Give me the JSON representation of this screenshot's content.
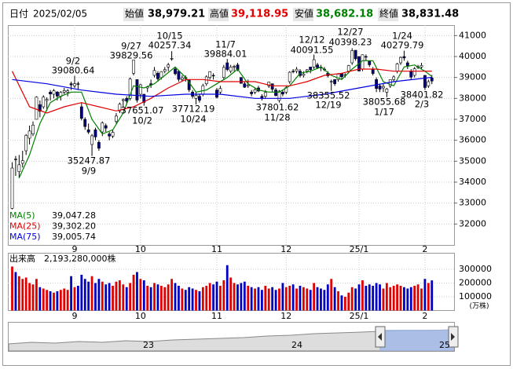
{
  "header": {
    "date_label": "日付",
    "date": "2025/02/05",
    "open_label": "始値",
    "open": "38,979.21",
    "high_label": "高値",
    "high": "39,118.95",
    "low_label": "安値",
    "low": "38,682.18",
    "close_label": "終値",
    "close": "38,831.48"
  },
  "chart_data": {
    "type": "candlestick",
    "candles": [
      [
        32750,
        34950,
        32700,
        34675
      ],
      [
        35100,
        35250,
        34300,
        35089
      ],
      [
        34500,
        35300,
        34200,
        34831
      ],
      [
        34900,
        35500,
        34700,
        35025
      ],
      [
        35500,
        36300,
        35300,
        36232
      ],
      [
        36100,
        36700,
        35800,
        36442
      ],
      [
        36300,
        36900,
        36200,
        36726
      ],
      [
        37000,
        38100,
        37000,
        38062
      ],
      [
        37700,
        37900,
        37100,
        37388
      ],
      [
        37600,
        38150,
        37500,
        38062
      ],
      [
        37900,
        38050,
        37400,
        37951
      ],
      [
        38300,
        38400,
        37900,
        38211
      ],
      [
        38200,
        38450,
        38000,
        38364
      ],
      [
        38300,
        38350,
        37900,
        38110
      ],
      [
        38100,
        38350,
        37900,
        38288
      ],
      [
        38300,
        38500,
        38200,
        38371
      ],
      [
        38300,
        38450,
        38100,
        38362
      ],
      [
        38700,
        38800,
        38400,
        38647
      ],
      [
        38600,
        39080.64,
        38500,
        38700
      ],
      [
        38700,
        38800,
        38400,
        38686
      ],
      [
        37600,
        37800,
        36950,
        37047
      ],
      [
        37000,
        37100,
        36500,
        36657
      ],
      [
        36500,
        36800,
        36300,
        36391
      ],
      [
        35800,
        36300,
        35247.87,
        36215
      ],
      [
        36500,
        36600,
        36000,
        36159
      ],
      [
        35900,
        36000,
        35500,
        35619
      ],
      [
        36400,
        36900,
        36200,
        36833
      ],
      [
        36700,
        36800,
        36400,
        36581
      ],
      [
        36300,
        36400,
        36000,
        36203
      ],
      [
        36200,
        36500,
        36100,
        36380
      ],
      [
        36900,
        37300,
        36800,
        37155
      ],
      [
        37400,
        37800,
        37300,
        37723
      ],
      [
        37900,
        38000,
        37600,
        37940
      ],
      [
        38000,
        38100,
        37700,
        37870
      ],
      [
        38000,
        39000,
        37900,
        38925
      ],
      [
        39200,
        39829.56,
        39100,
        39829
      ],
      [
        38900,
        38900,
        37800,
        37919
      ],
      [
        38200,
        38700,
        38000,
        38651
      ],
      [
        38200,
        38200,
        37651.07,
        37808
      ],
      [
        38500,
        38600,
        38300,
        38552
      ],
      [
        38700,
        38900,
        38500,
        38635
      ],
      [
        39100,
        39500,
        39000,
        39332
      ],
      [
        39200,
        39300,
        38800,
        38937
      ],
      [
        39000,
        39300,
        38900,
        39277
      ],
      [
        39300,
        39500,
        39200,
        39380
      ],
      [
        39500,
        39700,
        39300,
        39605
      ],
      [
        39900,
        40257.34,
        39800,
        39910
      ],
      [
        39400,
        39500,
        39100,
        39180
      ],
      [
        39300,
        39300,
        38800,
        38911
      ],
      [
        38900,
        39100,
        38800,
        38981
      ],
      [
        39000,
        39100,
        38800,
        38954
      ],
      [
        38900,
        38900,
        38300,
        38411
      ],
      [
        38300,
        38400,
        38000,
        38104
      ],
      [
        38000,
        38300,
        37712.19,
        38143
      ],
      [
        38100,
        38200,
        37800,
        37913
      ],
      [
        38200,
        38700,
        38100,
        38605
      ],
      [
        38700,
        39100,
        38600,
        39027
      ],
      [
        39000,
        39300,
        38900,
        39277
      ],
      [
        39100,
        39200,
        38900,
        39081
      ],
      [
        38400,
        38500,
        38000,
        38053
      ],
      [
        38300,
        38600,
        38200,
        38474
      ],
      [
        39000,
        39600,
        38900,
        39480
      ],
      [
        39700,
        39884.01,
        39300,
        39381
      ],
      [
        39300,
        39600,
        39200,
        39500
      ],
      [
        39500,
        39600,
        39300,
        39533
      ],
      [
        39600,
        39700,
        39300,
        39376
      ],
      [
        39000,
        39000,
        38700,
        38721
      ],
      [
        38700,
        38800,
        38500,
        38535
      ],
      [
        38600,
        38900,
        38500,
        38642
      ],
      [
        38300,
        38400,
        38100,
        38220
      ],
      [
        38300,
        38500,
        38200,
        38414
      ],
      [
        38500,
        38600,
        38300,
        38352
      ],
      [
        38100,
        38200,
        37900,
        38026
      ],
      [
        38100,
        38400,
        38000,
        38283
      ],
      [
        38600,
        38800,
        38500,
        38780
      ],
      [
        38700,
        38700,
        38300,
        38442
      ],
      [
        38400,
        38500,
        38100,
        38134
      ],
      [
        37900,
        38400,
        37801.62,
        38349
      ],
      [
        38300,
        38400,
        38100,
        38208
      ],
      [
        38300,
        38600,
        38200,
        38513
      ],
      [
        38800,
        39300,
        38700,
        39248
      ],
      [
        39300,
        39400,
        39200,
        39276
      ],
      [
        39300,
        39500,
        39200,
        39395
      ],
      [
        39300,
        39400,
        39000,
        39091
      ],
      [
        39100,
        39300,
        39000,
        39160
      ],
      [
        39300,
        39400,
        39200,
        39367
      ],
      [
        39500,
        39500,
        39200,
        39372
      ],
      [
        39500,
        40091.55,
        39400,
        39849
      ],
      [
        39600,
        39700,
        39400,
        39470
      ],
      [
        39500,
        39600,
        39300,
        39457
      ],
      [
        39400,
        39500,
        39300,
        39364
      ],
      [
        39200,
        39300,
        39000,
        39081
      ],
      [
        38800,
        38900,
        38355.52,
        38813
      ],
      [
        38900,
        38900,
        38600,
        38701
      ],
      [
        38900,
        39200,
        38800,
        39161
      ],
      [
        39200,
        39200,
        38900,
        39036
      ],
      [
        39100,
        39200,
        39000,
        39130
      ],
      [
        39300,
        39600,
        39200,
        39568
      ],
      [
        39700,
        40398.23,
        39600,
        40281
      ],
      [
        40300,
        40300,
        39800,
        39894
      ],
      [
        40000,
        40000,
        39300,
        39307
      ],
      [
        39400,
        40100,
        39300,
        40083
      ],
      [
        40000,
        40100,
        39800,
        39981
      ],
      [
        39800,
        39800,
        39500,
        39605
      ],
      [
        39400,
        39500,
        39100,
        39190
      ],
      [
        38900,
        39000,
        38300,
        38474
      ],
      [
        38600,
        38700,
        38300,
        38444
      ],
      [
        38500,
        38700,
        38300,
        38572
      ],
      [
        38300,
        38500,
        38055.68,
        38451
      ],
      [
        38600,
        38900,
        38500,
        38902
      ],
      [
        38900,
        39100,
        38800,
        39027
      ],
      [
        39300,
        39700,
        39200,
        39646
      ],
      [
        39700,
        40000,
        39600,
        39958
      ],
      [
        40000,
        40279.79,
        39800,
        39931
      ],
      [
        39700,
        39800,
        39400,
        39565
      ],
      [
        39300,
        39400,
        38900,
        39016
      ],
      [
        39100,
        39500,
        39000,
        39414
      ],
      [
        39500,
        39600,
        39400,
        39513
      ],
      [
        39500,
        39700,
        39400,
        39572
      ],
      [
        39100,
        39100,
        38401.82,
        38520
      ],
      [
        38600,
        38900,
        38500,
        38798
      ],
      [
        38979.21,
        39118.95,
        38682.18,
        38831.48
      ]
    ],
    "up_color": "#ffffff",
    "down_color": "#000080",
    "xlim": [
      -1.25,
      127.4
    ],
    "xticks": [
      {
        "value": 18,
        "label": "9"
      },
      {
        "value": 37,
        "label": "10"
      },
      {
        "value": 59,
        "label": "11"
      },
      {
        "value": 79,
        "label": "12"
      },
      {
        "value": 100,
        "label": "25/1"
      },
      {
        "value": 119,
        "label": "2"
      }
    ],
    "ylim": [
      31000,
      41500
    ],
    "yticks": [
      32000,
      33000,
      34000,
      35000,
      36000,
      37000,
      38000,
      39000,
      40000,
      41000
    ],
    "grid": true,
    "ma": [
      {
        "name": "MA(5)",
        "color": "#008000",
        "last": {
          "value": 39047.28,
          "label": "39,047.28"
        },
        "x": [
          2,
          5,
          8,
          11,
          14,
          17,
          20,
          23,
          26,
          29,
          32,
          35,
          38,
          41,
          44,
          47,
          50,
          53,
          56,
          59,
          62,
          65,
          68,
          71,
          74,
          77,
          80,
          83,
          86,
          89,
          92,
          95,
          98,
          101,
          104,
          107,
          110,
          113,
          116,
          119,
          121
        ],
        "values": [
          34200,
          35300,
          36800,
          37800,
          38100,
          38300,
          38300,
          37000,
          36300,
          36500,
          37300,
          38600,
          38500,
          38700,
          39100,
          39500,
          39000,
          38300,
          38400,
          38700,
          39000,
          39400,
          38700,
          38400,
          38300,
          38300,
          38600,
          39200,
          39300,
          39500,
          39100,
          38900,
          39400,
          39800,
          39800,
          38800,
          38600,
          39500,
          39600,
          39300,
          39047.28
        ]
      },
      {
        "name": "MA(25)",
        "color": "#e00000",
        "last": {
          "value": 39302.2,
          "label": "39,302.20"
        },
        "x": [
          0,
          5,
          10,
          15,
          20,
          25,
          30,
          35,
          40,
          45,
          50,
          55,
          60,
          65,
          70,
          75,
          80,
          85,
          90,
          95,
          100,
          105,
          110,
          115,
          121
        ],
        "values": [
          39300,
          37600,
          37300,
          37600,
          37800,
          37600,
          37400,
          37600,
          38000,
          38500,
          38900,
          38900,
          38800,
          38800,
          38800,
          38600,
          38600,
          38800,
          39100,
          39200,
          39400,
          39400,
          39300,
          39300,
          39302.2
        ]
      },
      {
        "name": "MA(75)",
        "color": "#0000e0",
        "last": {
          "value": 39005.74,
          "label": "39,005.74"
        },
        "x": [
          0,
          10,
          20,
          30,
          40,
          50,
          60,
          70,
          80,
          90,
          100,
          110,
          121
        ],
        "values": [
          38900,
          38700,
          38400,
          38200,
          38100,
          38200,
          38200,
          38000,
          38000,
          38200,
          38500,
          38800,
          39005.74
        ]
      }
    ],
    "annotations": [
      {
        "date": "9/2",
        "price": 39080.64
      },
      {
        "date": "9/27",
        "price": 39829.56
      },
      {
        "date": "10/15",
        "price": 40257.34
      },
      {
        "date": "11/7",
        "price": 39884.01
      },
      {
        "date": "12/12",
        "price": 40091.55
      },
      {
        "date": "12/27",
        "price": 40398.23
      },
      {
        "date": "1/24",
        "price": 40279.79
      },
      {
        "date": "9/9",
        "price": 35247.87
      },
      {
        "date": "10/2",
        "price": 37651.07
      },
      {
        "date": "10/24",
        "price": 37712.19
      },
      {
        "date": "11/28",
        "price": 37801.62
      },
      {
        "date": "12/19",
        "price": 38355.52
      },
      {
        "date": "1/17",
        "price": 38055.68
      },
      {
        "date": "2/3",
        "price": 38401.82
      }
    ],
    "volume": {
      "title": "出来高",
      "total": "2,193,280,000株",
      "unit": "(万株)",
      "up_color": "#e00000",
      "down_color": "#0000c0",
      "ylim": [
        0,
        420000
      ],
      "yticks": [
        100000,
        200000,
        300000
      ],
      "values": [
        320000,
        280000,
        250000,
        230000,
        240000,
        200000,
        190000,
        230000,
        170000,
        160000,
        150000,
        140000,
        130000,
        140000,
        150000,
        160000,
        150000,
        250000,
        170000,
        180000,
        260000,
        230000,
        210000,
        250000,
        200000,
        230000,
        210000,
        190000,
        200000,
        180000,
        210000,
        220000,
        190000,
        170000,
        200000,
        260000,
        280000,
        230000,
        220000,
        180000,
        170000,
        200000,
        190000,
        180000,
        170000,
        190000,
        230000,
        200000,
        180000,
        160000,
        150000,
        170000,
        160000,
        150000,
        140000,
        170000,
        180000,
        200000,
        190000,
        210000,
        180000,
        220000,
        330000,
        240000,
        200000,
        190000,
        200000,
        210000,
        180000,
        170000,
        160000,
        170000,
        150000,
        180000,
        160000,
        170000,
        150000,
        160000,
        200000,
        170000,
        180000,
        190000,
        160000,
        180000,
        170000,
        160000,
        150000,
        200000,
        170000,
        160000,
        150000,
        190000,
        230000,
        170000,
        140000,
        110000,
        100000,
        130000,
        170000,
        160000,
        190000,
        220000,
        180000,
        190000,
        180000,
        200000,
        190000,
        160000,
        200000,
        170000,
        180000,
        190000,
        180000,
        170000,
        160000,
        170000,
        180000,
        190000,
        160000,
        230000,
        200000,
        219328
      ]
    }
  },
  "navigator": {
    "labels": [
      "23",
      "24",
      "25"
    ]
  }
}
